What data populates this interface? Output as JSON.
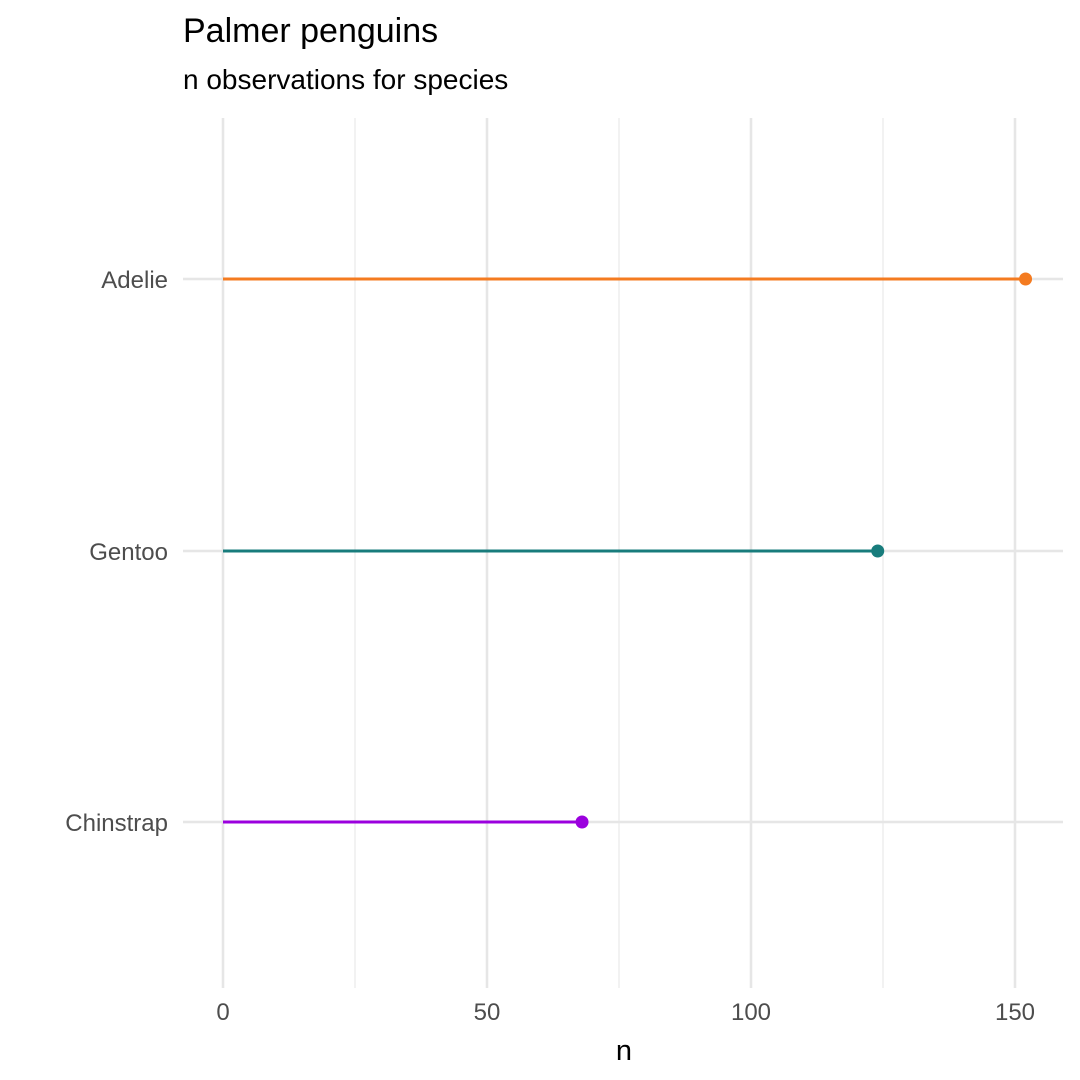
{
  "chart_data": {
    "type": "lollipop",
    "title": "Palmer penguins",
    "subtitle": "n observations for species",
    "xlabel": "n",
    "ylabel": "",
    "xlim": [
      0,
      160
    ],
    "x_ticks": [
      0,
      50,
      100,
      150
    ],
    "x_tick_labels": [
      "0",
      "50",
      "100",
      "150"
    ],
    "grid": true,
    "categories": [
      "Adelie",
      "Gentoo",
      "Chinstrap"
    ],
    "values": [
      152,
      124,
      68
    ],
    "colors": [
      "#F47B20",
      "#187C7C",
      "#9B00DE"
    ]
  }
}
